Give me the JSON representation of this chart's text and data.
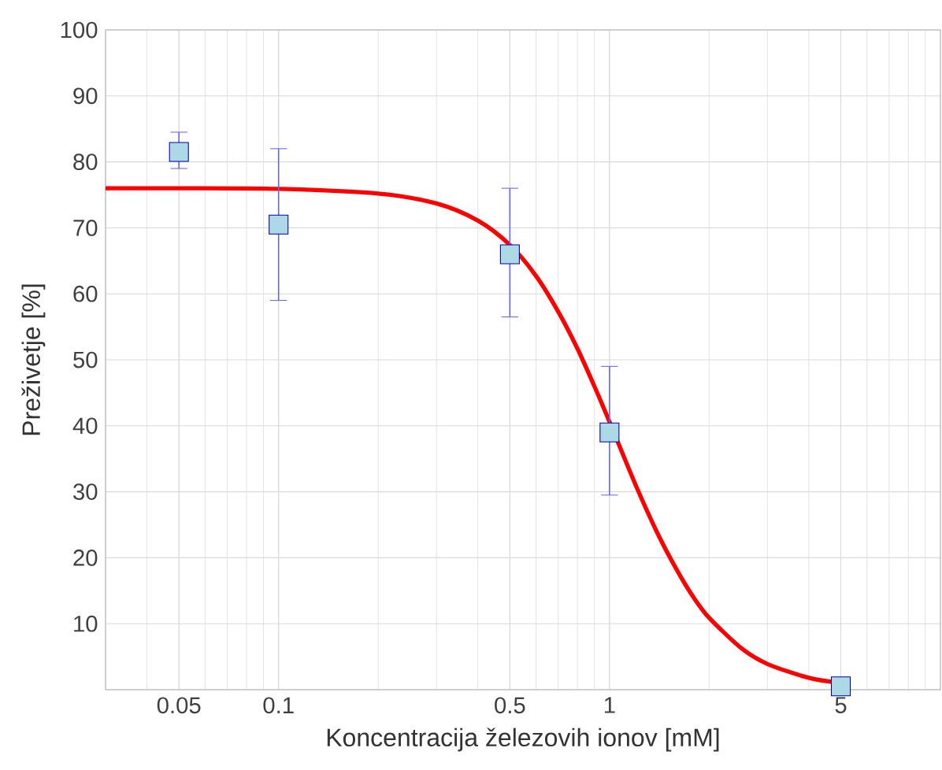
{
  "chart_data": {
    "type": "scatter",
    "xlabel": "Koncentracija železovih ionov [mM]",
    "ylabel": "Preživetje [%]",
    "log": "x",
    "grid": true,
    "xlim": [
      0.03,
      10
    ],
    "xticks": [
      0.05,
      0.1,
      0.5,
      1,
      5
    ],
    "ylim": [
      0,
      100
    ],
    "yticks": [
      {
        "value": 0,
        "label": null
      },
      10,
      20,
      30,
      40,
      50,
      60,
      70,
      80,
      90,
      100
    ],
    "series": [
      {
        "color": "#add8e6",
        "marker": "square",
        "x": [
          0.05,
          0.1,
          0.5,
          1,
          5
        ],
        "values": [
          81.5,
          70.5,
          66,
          39,
          0.5
        ],
        "errors": [
          [
            79,
            84.5
          ],
          [
            59,
            82
          ],
          [
            56.5,
            76
          ],
          [
            29.5,
            49
          ],
          null
        ]
      },
      {
        "type": "line",
        "color": "#ff0000",
        "marker": "none",
        "x": [
          0.03,
          0.05,
          0.1,
          0.2,
          0.3,
          0.4,
          0.5,
          0.6,
          0.7,
          0.8,
          0.9,
          1.0,
          1.2,
          1.4,
          1.6,
          1.8,
          2.0,
          2.5,
          3,
          4,
          5
        ],
        "values": [
          76,
          76,
          75.9,
          75.2,
          73.7,
          71.1,
          67.4,
          62.7,
          57.3,
          51.7,
          46.0,
          40.6,
          31.0,
          23.6,
          18.1,
          13.9,
          10.9,
          6.3,
          3.9,
          1.8,
          1.0
        ]
      }
    ]
  }
}
